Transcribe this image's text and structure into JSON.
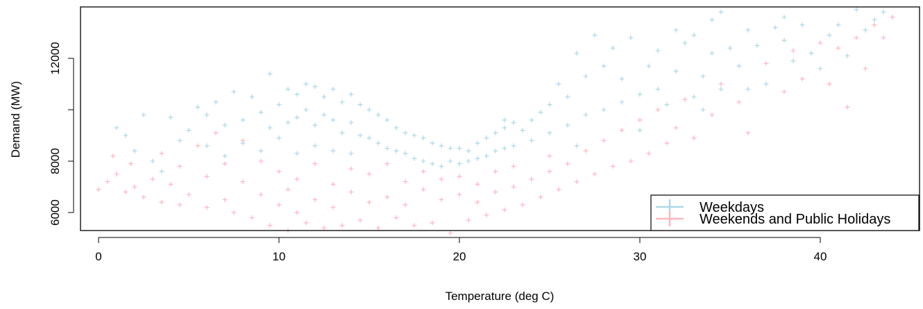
{
  "chart_data": {
    "type": "scatter",
    "title": "",
    "xlabel": "Temperature (deg C)",
    "ylabel": "Demand (MW)",
    "xlim": [
      -1,
      45.5
    ],
    "ylim": [
      5300,
      14000
    ],
    "x_ticks": [
      0,
      10,
      20,
      30,
      40
    ],
    "x_tick_labels": [
      "0",
      "10",
      "20",
      "30",
      "40"
    ],
    "y_ticks": [
      6000,
      8000,
      10000,
      12000
    ],
    "y_tick_labels": [
      "6000",
      "8000",
      "",
      "12000"
    ],
    "marker": "+",
    "grid": false,
    "legend_position": "bottom-right",
    "series": [
      {
        "name": "Weekdays",
        "color": "#add8e6",
        "points": [
          [
            1.0,
            9300
          ],
          [
            1.5,
            9000
          ],
          [
            2.0,
            8400
          ],
          [
            2.5,
            9800
          ],
          [
            3.0,
            8000
          ],
          [
            3.5,
            7600
          ],
          [
            4.0,
            9700
          ],
          [
            4.5,
            8800
          ],
          [
            5.0,
            9200
          ],
          [
            5.5,
            10100
          ],
          [
            6.0,
            8600
          ],
          [
            6.0,
            9800
          ],
          [
            6.5,
            10300
          ],
          [
            7.0,
            9400
          ],
          [
            7.0,
            8200
          ],
          [
            7.5,
            10700
          ],
          [
            8.0,
            9600
          ],
          [
            8.0,
            8700
          ],
          [
            8.5,
            10500
          ],
          [
            9.0,
            9900
          ],
          [
            9.0,
            8400
          ],
          [
            9.5,
            11400
          ],
          [
            9.5,
            9300
          ],
          [
            10.0,
            10200
          ],
          [
            10.0,
            8900
          ],
          [
            10.5,
            10800
          ],
          [
            10.5,
            9500
          ],
          [
            11.0,
            10600
          ],
          [
            11.0,
            9700
          ],
          [
            11.0,
            8300
          ],
          [
            11.5,
            11000
          ],
          [
            11.5,
            10000
          ],
          [
            12.0,
            10900
          ],
          [
            12.0,
            9400
          ],
          [
            12.0,
            8600
          ],
          [
            12.5,
            10500
          ],
          [
            12.5,
            9800
          ],
          [
            13.0,
            10800
          ],
          [
            13.0,
            9600
          ],
          [
            13.0,
            8400
          ],
          [
            13.5,
            10300
          ],
          [
            13.5,
            9100
          ],
          [
            14.0,
            10600
          ],
          [
            14.0,
            9500
          ],
          [
            14.0,
            8300
          ],
          [
            14.5,
            10200
          ],
          [
            14.5,
            9000
          ],
          [
            15.0,
            10000
          ],
          [
            15.0,
            8900
          ],
          [
            15.5,
            9800
          ],
          [
            15.5,
            8700
          ],
          [
            16.0,
            9600
          ],
          [
            16.0,
            8500
          ],
          [
            16.5,
            9300
          ],
          [
            16.5,
            8400
          ],
          [
            17.0,
            9100
          ],
          [
            17.0,
            8300
          ],
          [
            17.5,
            9000
          ],
          [
            17.5,
            8100
          ],
          [
            18.0,
            8900
          ],
          [
            18.0,
            8000
          ],
          [
            18.5,
            8700
          ],
          [
            18.5,
            7900
          ],
          [
            19.0,
            8600
          ],
          [
            19.0,
            7800
          ],
          [
            19.5,
            8500
          ],
          [
            19.5,
            8000
          ],
          [
            20.0,
            8500
          ],
          [
            20.0,
            7900
          ],
          [
            20.5,
            8400
          ],
          [
            20.5,
            8000
          ],
          [
            21.0,
            8700
          ],
          [
            21.0,
            8100
          ],
          [
            21.5,
            8900
          ],
          [
            21.5,
            8200
          ],
          [
            22.0,
            9100
          ],
          [
            22.0,
            8400
          ],
          [
            22.5,
            9300
          ],
          [
            22.5,
            8500
          ],
          [
            23.0,
            9500
          ],
          [
            23.0,
            8600
          ],
          [
            23.5,
            9200
          ],
          [
            24.0,
            9600
          ],
          [
            24.0,
            8800
          ],
          [
            24.5,
            9900
          ],
          [
            25.0,
            10200
          ],
          [
            25.0,
            9100
          ],
          [
            25.5,
            11000
          ],
          [
            26.0,
            10500
          ],
          [
            26.0,
            9400
          ],
          [
            26.5,
            12200
          ],
          [
            27.0,
            11300
          ],
          [
            27.0,
            9800
          ],
          [
            27.5,
            12900
          ],
          [
            28.0,
            11700
          ],
          [
            28.0,
            10000
          ],
          [
            28.5,
            12400
          ],
          [
            29.0,
            11200
          ],
          [
            29.0,
            10300
          ],
          [
            29.5,
            12800
          ],
          [
            30.0,
            10600
          ],
          [
            30.0,
            9200
          ],
          [
            30.5,
            11700
          ],
          [
            31.0,
            12300
          ],
          [
            31.0,
            10800
          ],
          [
            31.5,
            10200
          ],
          [
            32.0,
            13100
          ],
          [
            32.0,
            11500
          ],
          [
            32.5,
            12600
          ],
          [
            33.0,
            10500
          ],
          [
            33.0,
            12900
          ],
          [
            33.5,
            11300
          ],
          [
            34.0,
            13500
          ],
          [
            34.0,
            12200
          ],
          [
            34.5,
            13800
          ],
          [
            34.5,
            10800
          ],
          [
            35.0,
            12400
          ],
          [
            35.5,
            11700
          ],
          [
            36.0,
            13100
          ],
          [
            36.5,
            12500
          ],
          [
            37.0,
            11000
          ],
          [
            37.5,
            13200
          ],
          [
            38.0,
            12700
          ],
          [
            38.0,
            13600
          ],
          [
            38.5,
            11900
          ],
          [
            39.0,
            13300
          ],
          [
            39.5,
            12200
          ],
          [
            40.0,
            11600
          ],
          [
            40.5,
            12900
          ],
          [
            41.0,
            13300
          ],
          [
            41.5,
            12100
          ],
          [
            42.0,
            13900
          ],
          [
            42.5,
            13100
          ],
          [
            43.0,
            13500
          ],
          [
            43.5,
            13800
          ],
          [
            44.0,
            13600
          ],
          [
            33.5,
            10000
          ],
          [
            36.0,
            10800
          ],
          [
            26.5,
            8600
          ],
          [
            22.5,
            9600
          ]
        ]
      },
      {
        "name": "Weekends and Public Holidays",
        "color": "#ffb6c1",
        "points": [
          [
            0.0,
            6900
          ],
          [
            0.5,
            7200
          ],
          [
            0.8,
            8200
          ],
          [
            1.0,
            7500
          ],
          [
            1.5,
            6800
          ],
          [
            1.8,
            7900
          ],
          [
            2.0,
            7000
          ],
          [
            2.5,
            6600
          ],
          [
            3.0,
            7300
          ],
          [
            3.5,
            6400
          ],
          [
            3.5,
            8300
          ],
          [
            4.0,
            7100
          ],
          [
            4.5,
            6300
          ],
          [
            4.5,
            7800
          ],
          [
            5.0,
            6700
          ],
          [
            5.5,
            8600
          ],
          [
            6.0,
            6200
          ],
          [
            6.0,
            7400
          ],
          [
            6.5,
            9100
          ],
          [
            7.0,
            6500
          ],
          [
            7.0,
            7900
          ],
          [
            7.5,
            6000
          ],
          [
            8.0,
            7200
          ],
          [
            8.0,
            8800
          ],
          [
            8.5,
            5800
          ],
          [
            9.0,
            6700
          ],
          [
            9.0,
            8000
          ],
          [
            9.5,
            5500
          ],
          [
            10.0,
            6300
          ],
          [
            10.0,
            7600
          ],
          [
            10.5,
            5300
          ],
          [
            10.5,
            6900
          ],
          [
            11.0,
            6000
          ],
          [
            11.0,
            7300
          ],
          [
            11.5,
            5600
          ],
          [
            12.0,
            6500
          ],
          [
            12.0,
            7900
          ],
          [
            12.5,
            5400
          ],
          [
            13.0,
            6200
          ],
          [
            13.0,
            7100
          ],
          [
            13.5,
            5500
          ],
          [
            14.0,
            6800
          ],
          [
            14.0,
            7700
          ],
          [
            14.5,
            5700
          ],
          [
            15.0,
            6400
          ],
          [
            15.0,
            7500
          ],
          [
            15.5,
            5400
          ],
          [
            16.0,
            6600
          ],
          [
            16.0,
            7900
          ],
          [
            16.5,
            5800
          ],
          [
            17.0,
            6300
          ],
          [
            17.0,
            7200
          ],
          [
            17.5,
            5500
          ],
          [
            18.0,
            6900
          ],
          [
            18.0,
            7600
          ],
          [
            18.5,
            5600
          ],
          [
            19.0,
            6500
          ],
          [
            19.0,
            7300
          ],
          [
            19.5,
            5200
          ],
          [
            20.0,
            6700
          ],
          [
            20.0,
            7400
          ],
          [
            20.5,
            5700
          ],
          [
            21.0,
            6400
          ],
          [
            21.0,
            7100
          ],
          [
            21.5,
            5900
          ],
          [
            22.0,
            6800
          ],
          [
            22.0,
            7600
          ],
          [
            22.5,
            6100
          ],
          [
            23.0,
            7000
          ],
          [
            23.0,
            7800
          ],
          [
            23.5,
            6300
          ],
          [
            24.0,
            7300
          ],
          [
            24.5,
            6600
          ],
          [
            25.0,
            7600
          ],
          [
            25.0,
            8200
          ],
          [
            25.5,
            6900
          ],
          [
            26.0,
            7900
          ],
          [
            26.5,
            7200
          ],
          [
            27.0,
            8400
          ],
          [
            27.5,
            7500
          ],
          [
            28.0,
            8800
          ],
          [
            28.5,
            7800
          ],
          [
            29.0,
            9200
          ],
          [
            29.5,
            8000
          ],
          [
            30.0,
            9600
          ],
          [
            30.5,
            8300
          ],
          [
            31.0,
            10000
          ],
          [
            31.5,
            8700
          ],
          [
            32.0,
            9300
          ],
          [
            32.5,
            10400
          ],
          [
            33.0,
            8900
          ],
          [
            34.0,
            9800
          ],
          [
            34.5,
            11000
          ],
          [
            35.5,
            10300
          ],
          [
            36.0,
            9100
          ],
          [
            37.0,
            11800
          ],
          [
            38.0,
            10700
          ],
          [
            38.5,
            12300
          ],
          [
            39.0,
            11200
          ],
          [
            40.0,
            12600
          ],
          [
            40.5,
            11000
          ],
          [
            41.0,
            12400
          ],
          [
            41.5,
            10100
          ],
          [
            42.0,
            12800
          ],
          [
            42.5,
            11600
          ],
          [
            43.0,
            13300
          ],
          [
            43.5,
            12800
          ],
          [
            44.0,
            13600
          ]
        ]
      }
    ]
  }
}
